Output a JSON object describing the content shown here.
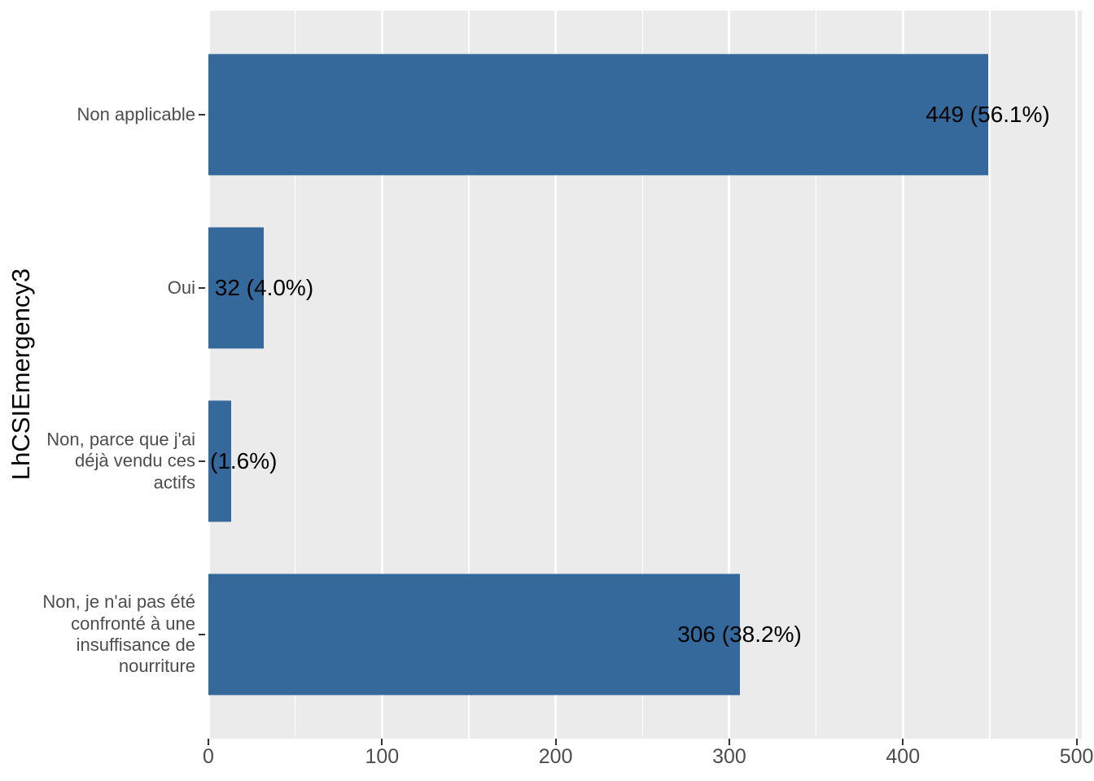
{
  "figure": {
    "background": "#FFFFFF",
    "panel_background": "#EBEBEB",
    "gridline_color": "#FFFFFF",
    "bar_color": "#35699B",
    "axis_text_color": "#4D4D4D",
    "label_text_color": "#000000"
  },
  "chart_data": {
    "type": "bar",
    "orientation": "horizontal",
    "title": "",
    "xlabel": "",
    "ylabel": "LhCSIEmergency3",
    "xlim": [
      0,
      503
    ],
    "x_major_ticks": [
      0,
      100,
      200,
      300,
      400,
      500
    ],
    "x_minor_ticks": [
      50,
      150,
      250,
      350,
      450
    ],
    "categories": [
      "Non applicable",
      "Oui",
      "Non, parce que j'ai\ndéjà vendu ces\nactifs",
      "Non, je n'ai pas été\nconfronté à une\ninsuffisance de\nnourriture"
    ],
    "values": [
      449,
      32,
      13,
      306
    ],
    "bar_labels": [
      "449 (56.1%)",
      "32 (4.0%)",
      "(1.6%)",
      "306 (38.2%)"
    ],
    "grid": true,
    "legend": false
  }
}
